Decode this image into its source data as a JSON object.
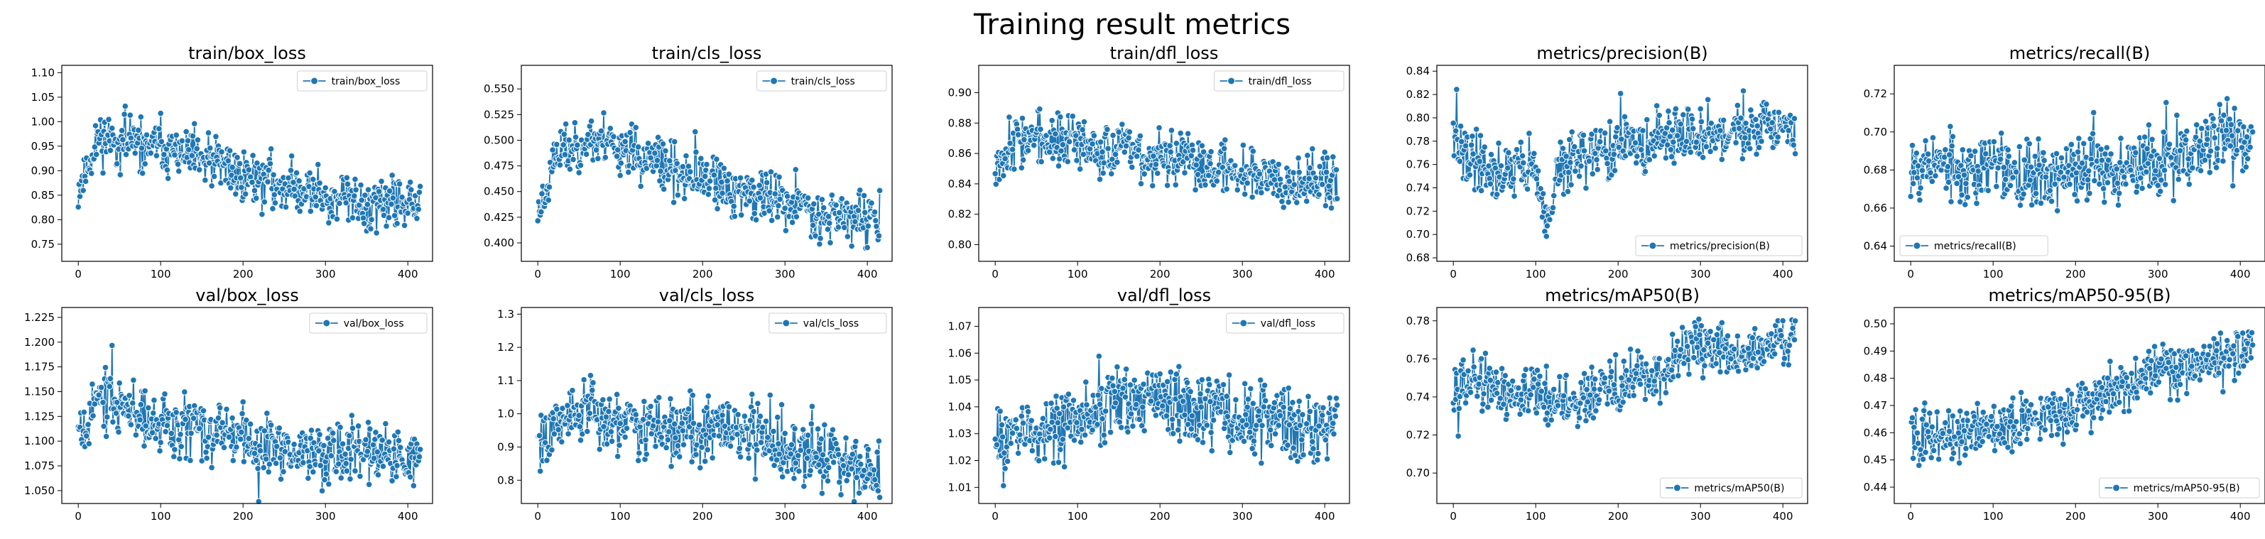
{
  "figure": {
    "title": "Training result metrics"
  },
  "chart_data": [
    {
      "type": "line",
      "title": "train/box_loss",
      "series": [
        {
          "name": "train/box_loss"
        }
      ],
      "legend": "top-right",
      "xlim": [
        -20,
        430
      ],
      "ylim": [
        0.715,
        1.115
      ],
      "xticks": [
        0,
        100,
        200,
        300,
        400
      ],
      "yticks": [
        0.75,
        0.8,
        0.85,
        0.9,
        0.95,
        1.0,
        1.05,
        1.1
      ],
      "ytick_labels": [
        "0.75",
        "0.80",
        "0.85",
        "0.90",
        "0.95",
        "1.00",
        "1.05",
        "1.10"
      ],
      "points": [
        [
          0,
          0.86
        ],
        [
          25,
          0.97
        ],
        [
          50,
          0.96
        ],
        [
          75,
          0.95
        ],
        [
          100,
          0.95
        ],
        [
          125,
          0.93
        ],
        [
          150,
          0.92
        ],
        [
          175,
          0.91
        ],
        [
          200,
          0.89
        ],
        [
          225,
          0.88
        ],
        [
          250,
          0.87
        ],
        [
          275,
          0.86
        ],
        [
          300,
          0.85
        ],
        [
          325,
          0.84
        ],
        [
          350,
          0.83
        ],
        [
          375,
          0.83
        ],
        [
          400,
          0.83
        ],
        [
          415,
          0.83
        ]
      ],
      "noise": 0.045,
      "seed": 11
    },
    {
      "type": "line",
      "title": "train/cls_loss",
      "series": [
        {
          "name": "train/cls_loss"
        }
      ],
      "legend": "top-right",
      "xlim": [
        -20,
        430
      ],
      "ylim": [
        0.382,
        0.573
      ],
      "xticks": [
        0,
        100,
        200,
        300,
        400
      ],
      "yticks": [
        0.4,
        0.425,
        0.45,
        0.475,
        0.5,
        0.525,
        0.55
      ],
      "ytick_labels": [
        "0.400",
        "0.425",
        "0.450",
        "0.475",
        "0.500",
        "0.525",
        "0.550"
      ],
      "points": [
        [
          0,
          0.43
        ],
        [
          25,
          0.49
        ],
        [
          50,
          0.495
        ],
        [
          75,
          0.5
        ],
        [
          100,
          0.495
        ],
        [
          125,
          0.485
        ],
        [
          150,
          0.475
        ],
        [
          175,
          0.465
        ],
        [
          200,
          0.46
        ],
        [
          225,
          0.455
        ],
        [
          250,
          0.45
        ],
        [
          275,
          0.445
        ],
        [
          300,
          0.44
        ],
        [
          325,
          0.435
        ],
        [
          350,
          0.43
        ],
        [
          375,
          0.425
        ],
        [
          400,
          0.425
        ],
        [
          415,
          0.42
        ]
      ],
      "noise": 0.022,
      "seed": 23
    },
    {
      "type": "line",
      "title": "train/dfl_loss",
      "series": [
        {
          "name": "train/dfl_loss"
        }
      ],
      "legend": "top-right",
      "xlim": [
        -20,
        430
      ],
      "ylim": [
        0.789,
        0.918
      ],
      "xticks": [
        0,
        100,
        200,
        300,
        400
      ],
      "yticks": [
        0.8,
        0.82,
        0.84,
        0.86,
        0.88,
        0.9
      ],
      "ytick_labels": [
        "0.80",
        "0.82",
        "0.84",
        "0.86",
        "0.88",
        "0.90"
      ],
      "points": [
        [
          0,
          0.855
        ],
        [
          25,
          0.87
        ],
        [
          50,
          0.87
        ],
        [
          75,
          0.868
        ],
        [
          100,
          0.866
        ],
        [
          125,
          0.865
        ],
        [
          150,
          0.862
        ],
        [
          175,
          0.86
        ],
        [
          200,
          0.857
        ],
        [
          225,
          0.855
        ],
        [
          250,
          0.853
        ],
        [
          275,
          0.851
        ],
        [
          300,
          0.849
        ],
        [
          325,
          0.847
        ],
        [
          350,
          0.845
        ],
        [
          375,
          0.843
        ],
        [
          400,
          0.842
        ],
        [
          415,
          0.84
        ]
      ],
      "noise": 0.015,
      "seed": 37
    },
    {
      "type": "line",
      "title": "metrics/precision(B)",
      "series": [
        {
          "name": "metrics/precision(B)"
        }
      ],
      "legend": "bottom-right",
      "xlim": [
        -20,
        430
      ],
      "ylim": [
        0.677,
        0.845
      ],
      "xticks": [
        0,
        100,
        200,
        300,
        400
      ],
      "yticks": [
        0.68,
        0.7,
        0.72,
        0.74,
        0.76,
        0.78,
        0.8,
        0.82,
        0.84
      ],
      "ytick_labels": [
        "0.68",
        "0.70",
        "0.72",
        "0.74",
        "0.76",
        "0.78",
        "0.80",
        "0.82",
        "0.84"
      ],
      "points": [
        [
          0,
          0.78
        ],
        [
          25,
          0.765
        ],
        [
          50,
          0.755
        ],
        [
          75,
          0.755
        ],
        [
          100,
          0.76
        ],
        [
          115,
          0.7
        ],
        [
          125,
          0.755
        ],
        [
          150,
          0.765
        ],
        [
          175,
          0.77
        ],
        [
          200,
          0.775
        ],
        [
          225,
          0.778
        ],
        [
          250,
          0.78
        ],
        [
          275,
          0.783
        ],
        [
          300,
          0.785
        ],
        [
          325,
          0.787
        ],
        [
          350,
          0.788
        ],
        [
          375,
          0.79
        ],
        [
          400,
          0.79
        ],
        [
          415,
          0.79
        ]
      ],
      "noise": 0.02,
      "seed": 41
    },
    {
      "type": "line",
      "title": "metrics/recall(B)",
      "series": [
        {
          "name": "metrics/recall(B)"
        }
      ],
      "legend": "bottom-left",
      "xlim": [
        -20,
        430
      ],
      "ylim": [
        0.632,
        0.735
      ],
      "xticks": [
        0,
        100,
        200,
        300,
        400
      ],
      "yticks": [
        0.64,
        0.66,
        0.68,
        0.7,
        0.72
      ],
      "ytick_labels": [
        "0.64",
        "0.66",
        "0.68",
        "0.70",
        "0.72"
      ],
      "points": [
        [
          0,
          0.685
        ],
        [
          25,
          0.685
        ],
        [
          50,
          0.68
        ],
        [
          75,
          0.68
        ],
        [
          100,
          0.68
        ],
        [
          125,
          0.68
        ],
        [
          150,
          0.678
        ],
        [
          175,
          0.678
        ],
        [
          200,
          0.678
        ],
        [
          225,
          0.68
        ],
        [
          250,
          0.68
        ],
        [
          275,
          0.682
        ],
        [
          300,
          0.684
        ],
        [
          325,
          0.686
        ],
        [
          350,
          0.69
        ],
        [
          375,
          0.7
        ],
        [
          400,
          0.695
        ],
        [
          415,
          0.695
        ]
      ],
      "noise": 0.015,
      "seed": 53
    },
    {
      "type": "line",
      "title": "val/box_loss",
      "series": [
        {
          "name": "val/box_loss"
        }
      ],
      "legend": "top-right",
      "xlim": [
        -20,
        430
      ],
      "ylim": [
        1.037,
        1.235
      ],
      "xticks": [
        0,
        100,
        200,
        300,
        400
      ],
      "yticks": [
        1.05,
        1.075,
        1.1,
        1.125,
        1.15,
        1.175,
        1.2,
        1.225
      ],
      "ytick_labels": [
        "1.050",
        "1.075",
        "1.100",
        "1.125",
        "1.150",
        "1.175",
        "1.200",
        "1.225"
      ],
      "points": [
        [
          0,
          1.12
        ],
        [
          25,
          1.14
        ],
        [
          50,
          1.135
        ],
        [
          75,
          1.13
        ],
        [
          100,
          1.12
        ],
        [
          125,
          1.115
        ],
        [
          150,
          1.11
        ],
        [
          175,
          1.105
        ],
        [
          200,
          1.1
        ],
        [
          225,
          1.1
        ],
        [
          250,
          1.095
        ],
        [
          275,
          1.092
        ],
        [
          300,
          1.09
        ],
        [
          325,
          1.09
        ],
        [
          350,
          1.088
        ],
        [
          375,
          1.085
        ],
        [
          400,
          1.08
        ],
        [
          415,
          1.08
        ]
      ],
      "noise": 0.025,
      "seed": 67
    },
    {
      "type": "line",
      "title": "val/cls_loss",
      "series": [
        {
          "name": "val/cls_loss"
        }
      ],
      "legend": "top-right",
      "xlim": [
        -20,
        430
      ],
      "ylim": [
        0.73,
        1.32
      ],
      "xticks": [
        0,
        100,
        200,
        300,
        400
      ],
      "yticks": [
        0.8,
        0.9,
        1.0,
        1.1,
        1.2,
        1.3
      ],
      "ytick_labels": [
        "0.8",
        "0.9",
        "1.0",
        "1.1",
        "1.2",
        "1.3"
      ],
      "points": [
        [
          0,
          0.92
        ],
        [
          25,
          0.98
        ],
        [
          50,
          1.02
        ],
        [
          75,
          1.0
        ],
        [
          100,
          0.98
        ],
        [
          125,
          0.96
        ],
        [
          150,
          0.95
        ],
        [
          175,
          0.95
        ],
        [
          200,
          0.95
        ],
        [
          225,
          0.96
        ],
        [
          250,
          0.95
        ],
        [
          275,
          0.92
        ],
        [
          300,
          0.9
        ],
        [
          325,
          0.88
        ],
        [
          350,
          0.87
        ],
        [
          375,
          0.85
        ],
        [
          400,
          0.83
        ],
        [
          415,
          0.82
        ]
      ],
      "noise": 0.08,
      "seed": 79
    },
    {
      "type": "line",
      "title": "val/dfl_loss",
      "series": [
        {
          "name": "val/dfl_loss"
        }
      ],
      "legend": "top-right",
      "xlim": [
        -20,
        430
      ],
      "ylim": [
        1.004,
        1.077
      ],
      "xticks": [
        0,
        100,
        200,
        300,
        400
      ],
      "yticks": [
        1.01,
        1.02,
        1.03,
        1.04,
        1.05,
        1.06,
        1.07
      ],
      "ytick_labels": [
        "1.01",
        "1.02",
        "1.03",
        "1.04",
        "1.05",
        "1.06",
        "1.07"
      ],
      "points": [
        [
          0,
          1.025
        ],
        [
          25,
          1.03
        ],
        [
          50,
          1.032
        ],
        [
          75,
          1.035
        ],
        [
          100,
          1.036
        ],
        [
          125,
          1.038
        ],
        [
          150,
          1.042
        ],
        [
          175,
          1.042
        ],
        [
          200,
          1.04
        ],
        [
          225,
          1.04
        ],
        [
          250,
          1.038
        ],
        [
          275,
          1.038
        ],
        [
          300,
          1.037
        ],
        [
          325,
          1.036
        ],
        [
          350,
          1.035
        ],
        [
          375,
          1.034
        ],
        [
          400,
          1.034
        ],
        [
          415,
          1.035
        ]
      ],
      "noise": 0.011,
      "seed": 83
    },
    {
      "type": "line",
      "title": "metrics/mAP50(B)",
      "series": [
        {
          "name": "metrics/mAP50(B)"
        }
      ],
      "legend": "bottom-right",
      "xlim": [
        -20,
        430
      ],
      "ylim": [
        0.684,
        0.787
      ],
      "xticks": [
        0,
        100,
        200,
        300,
        400
      ],
      "yticks": [
        0.7,
        0.72,
        0.74,
        0.76,
        0.78
      ],
      "ytick_labels": [
        "0.70",
        "0.72",
        "0.74",
        "0.76",
        "0.78"
      ],
      "points": [
        [
          0,
          0.75
        ],
        [
          25,
          0.748
        ],
        [
          50,
          0.742
        ],
        [
          75,
          0.738
        ],
        [
          100,
          0.738
        ],
        [
          125,
          0.738
        ],
        [
          150,
          0.74
        ],
        [
          175,
          0.742
        ],
        [
          200,
          0.745
        ],
        [
          225,
          0.748
        ],
        [
          250,
          0.752
        ],
        [
          275,
          0.762
        ],
        [
          300,
          0.768
        ],
        [
          325,
          0.762
        ],
        [
          350,
          0.762
        ],
        [
          375,
          0.764
        ],
        [
          400,
          0.768
        ],
        [
          415,
          0.77
        ]
      ],
      "noise": 0.012,
      "seed": 97
    },
    {
      "type": "line",
      "title": "metrics/mAP50-95(B)",
      "series": [
        {
          "name": "metrics/mAP50-95(B)"
        }
      ],
      "legend": "bottom-right",
      "xlim": [
        -20,
        430
      ],
      "ylim": [
        0.434,
        0.506
      ],
      "xticks": [
        0,
        100,
        200,
        300,
        400
      ],
      "yticks": [
        0.44,
        0.45,
        0.46,
        0.47,
        0.48,
        0.49,
        0.5
      ],
      "ytick_labels": [
        "0.44",
        "0.45",
        "0.46",
        "0.47",
        "0.48",
        "0.49",
        "0.50"
      ],
      "points": [
        [
          0,
          0.462
        ],
        [
          25,
          0.458
        ],
        [
          50,
          0.458
        ],
        [
          75,
          0.46
        ],
        [
          100,
          0.462
        ],
        [
          125,
          0.463
        ],
        [
          150,
          0.465
        ],
        [
          175,
          0.467
        ],
        [
          200,
          0.469
        ],
        [
          225,
          0.472
        ],
        [
          250,
          0.476
        ],
        [
          275,
          0.48
        ],
        [
          300,
          0.484
        ],
        [
          325,
          0.484
        ],
        [
          350,
          0.485
        ],
        [
          375,
          0.488
        ],
        [
          400,
          0.49
        ],
        [
          415,
          0.491
        ]
      ],
      "noise": 0.008,
      "seed": 101
    }
  ]
}
